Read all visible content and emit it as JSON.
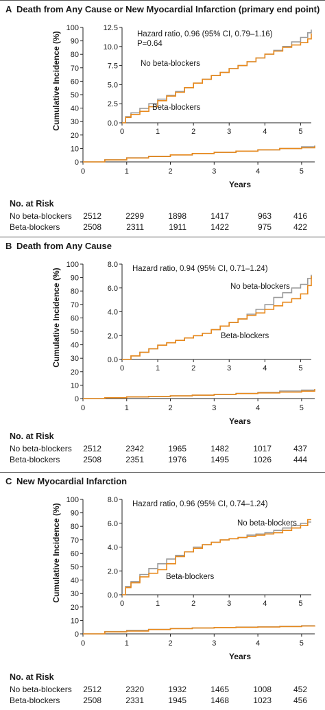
{
  "colors": {
    "no_beta": "#9a9a9a",
    "beta": "#e8891c",
    "frame": "#555555"
  },
  "panels": [
    {
      "letter": "A",
      "title": "Death from Any Cause or New Myocardial Infarction (primary end point)",
      "risk_title": "No. at Risk",
      "risk_rows": [
        {
          "label": "No beta-blockers",
          "values": [
            "2512",
            "2299",
            "1898",
            "1417",
            "963",
            "416"
          ]
        },
        {
          "label": "Beta-blockers",
          "values": [
            "2508",
            "2311",
            "1911",
            "1422",
            "975",
            "422"
          ]
        }
      ]
    },
    {
      "letter": "B",
      "title": "Death from Any Cause",
      "risk_title": "No. at Risk",
      "risk_rows": [
        {
          "label": "No beta-blockers",
          "values": [
            "2512",
            "2342",
            "1965",
            "1482",
            "1017",
            "437"
          ]
        },
        {
          "label": "Beta-blockers",
          "values": [
            "2508",
            "2351",
            "1976",
            "1495",
            "1026",
            "444"
          ]
        }
      ]
    },
    {
      "letter": "C",
      "title": "New Myocardial Infarction",
      "risk_title": "No. at Risk",
      "risk_rows": [
        {
          "label": "No beta-blockers",
          "values": [
            "2512",
            "2320",
            "1932",
            "1465",
            "1008",
            "452"
          ]
        },
        {
          "label": "Beta-blockers",
          "values": [
            "2508",
            "2331",
            "1945",
            "1468",
            "1023",
            "456"
          ]
        }
      ]
    }
  ],
  "chart_data": [
    {
      "type": "line",
      "title": "Death from Any Cause or New Myocardial Infarction (primary end point)",
      "xlabel": "Years",
      "ylabel": "Cumulative Incidence (%)",
      "xlim": [
        0,
        5.3
      ],
      "ylim": [
        0,
        100
      ],
      "xticks": [
        "0",
        "1",
        "2",
        "3",
        "4",
        "5"
      ],
      "yticks": [
        "0",
        "10",
        "20",
        "30",
        "40",
        "50",
        "60",
        "70",
        "80",
        "90",
        "100"
      ],
      "series": [
        {
          "name": "No beta-blockers",
          "color": "#9a9a9a",
          "x": [
            0,
            0.5,
            1,
            1.5,
            2,
            2.5,
            3,
            3.5,
            4,
            4.5,
            5,
            5.3
          ],
          "y": [
            0,
            1.6,
            3.0,
            4.2,
            5.2,
            6.2,
            7.1,
            8.0,
            9.0,
            10.0,
            11.2,
            12.2
          ]
        },
        {
          "name": "Beta-blockers",
          "color": "#e8891c",
          "x": [
            0,
            0.5,
            1,
            1.5,
            2,
            2.5,
            3,
            3.5,
            4,
            4.5,
            5,
            5.3
          ],
          "y": [
            0,
            1.5,
            2.9,
            4.0,
            5.2,
            6.2,
            7.1,
            8.0,
            9.0,
            9.9,
            10.5,
            11.7
          ]
        }
      ],
      "inset": {
        "xlim": [
          0,
          5.3
        ],
        "ylim": [
          0,
          12.5
        ],
        "xticks": [
          "0",
          "1",
          "2",
          "3",
          "4",
          "5"
        ],
        "yticks": [
          "0.0",
          "2.5",
          "5.0",
          "7.5",
          "10.0",
          "12.5"
        ],
        "annotations": [
          "Hazard ratio, 0.96 (95% CI, 0.79–1.16)",
          "P=0.64",
          "No beta-blockers",
          "Beta-blockers"
        ],
        "series": [
          {
            "name": "No beta-blockers",
            "color": "#9a9a9a",
            "x": [
              0,
              0.1,
              0.25,
              0.5,
              0.75,
              1.0,
              1.25,
              1.5,
              1.75,
              2.0,
              2.25,
              2.5,
              2.75,
              3.0,
              3.25,
              3.5,
              3.75,
              4.0,
              4.25,
              4.5,
              4.75,
              5.0,
              5.2,
              5.3
            ],
            "y": [
              0,
              0.8,
              1.3,
              1.9,
              2.5,
              3.1,
              3.6,
              4.1,
              4.6,
              5.2,
              5.7,
              6.2,
              6.6,
              7.1,
              7.5,
              8.0,
              8.5,
              9.0,
              9.5,
              10.0,
              10.6,
              11.2,
              11.8,
              12.2
            ]
          },
          {
            "name": "Beta-blockers",
            "color": "#e8891c",
            "x": [
              0,
              0.1,
              0.25,
              0.5,
              0.75,
              1.0,
              1.25,
              1.5,
              1.75,
              2.0,
              2.25,
              2.5,
              2.75,
              3.0,
              3.25,
              3.5,
              3.75,
              4.0,
              4.25,
              4.5,
              4.75,
              5.0,
              5.2,
              5.3
            ],
            "y": [
              0,
              0.7,
              1.1,
              1.5,
              2.1,
              2.9,
              3.5,
              4.0,
              4.6,
              5.2,
              5.7,
              6.2,
              6.6,
              7.1,
              7.5,
              8.0,
              8.5,
              9.0,
              9.4,
              9.9,
              10.2,
              10.5,
              11.0,
              11.7
            ]
          }
        ]
      }
    },
    {
      "type": "line",
      "title": "Death from Any Cause",
      "xlabel": "Years",
      "ylabel": "Cumulative Incidence (%)",
      "xlim": [
        0,
        5.3
      ],
      "ylim": [
        0,
        100
      ],
      "xticks": [
        "0",
        "1",
        "2",
        "3",
        "4",
        "5"
      ],
      "yticks": [
        "0",
        "10",
        "20",
        "30",
        "40",
        "50",
        "60",
        "70",
        "80",
        "90",
        "100"
      ],
      "series": [
        {
          "name": "No beta-blockers",
          "color": "#9a9a9a",
          "x": [
            0,
            0.5,
            1,
            1.5,
            2,
            2.5,
            3,
            3.5,
            4,
            4.5,
            5,
            5.3
          ],
          "y": [
            0,
            0.6,
            1.2,
            1.6,
            2.0,
            2.5,
            3.1,
            3.8,
            4.6,
            5.6,
            6.3,
            7.1
          ]
        },
        {
          "name": "Beta-blockers",
          "color": "#e8891c",
          "x": [
            0,
            0.5,
            1,
            1.5,
            2,
            2.5,
            3,
            3.5,
            4,
            4.5,
            5,
            5.3
          ],
          "y": [
            0,
            0.6,
            1.2,
            1.6,
            2.0,
            2.5,
            3.1,
            3.7,
            4.2,
            4.8,
            5.5,
            7.0
          ]
        }
      ],
      "inset": {
        "xlim": [
          0,
          5.3
        ],
        "ylim": [
          0,
          8.0
        ],
        "xticks": [
          "0",
          "1",
          "2",
          "3",
          "4",
          "5"
        ],
        "yticks": [
          "0.0",
          "2.0",
          "4.0",
          "6.0",
          "8.0"
        ],
        "annotations": [
          "Hazard ratio, 0.94 (95% CI, 0.71–1.24)",
          "No beta-blockers",
          "Beta-blockers"
        ],
        "series": [
          {
            "name": "No beta-blockers",
            "color": "#9a9a9a",
            "x": [
              0,
              0.25,
              0.5,
              0.75,
              1.0,
              1.25,
              1.5,
              1.75,
              2.0,
              2.25,
              2.5,
              2.75,
              3.0,
              3.25,
              3.5,
              3.75,
              4.0,
              4.25,
              4.5,
              4.75,
              5.0,
              5.2,
              5.3
            ],
            "y": [
              0,
              0.3,
              0.6,
              0.9,
              1.2,
              1.4,
              1.6,
              1.8,
              2.0,
              2.2,
              2.5,
              2.8,
              3.1,
              3.4,
              3.8,
              4.2,
              4.6,
              5.2,
              5.6,
              6.0,
              6.3,
              6.8,
              7.1
            ]
          },
          {
            "name": "Beta-blockers",
            "color": "#e8891c",
            "x": [
              0,
              0.25,
              0.5,
              0.75,
              1.0,
              1.25,
              1.5,
              1.75,
              2.0,
              2.25,
              2.5,
              2.75,
              3.0,
              3.25,
              3.5,
              3.75,
              4.0,
              4.25,
              4.5,
              4.75,
              5.0,
              5.2,
              5.3
            ],
            "y": [
              0,
              0.3,
              0.6,
              0.9,
              1.2,
              1.4,
              1.6,
              1.8,
              2.0,
              2.2,
              2.5,
              2.8,
              3.1,
              3.4,
              3.7,
              3.9,
              4.2,
              4.5,
              4.8,
              5.1,
              5.5,
              6.2,
              7.0
            ]
          }
        ]
      }
    },
    {
      "type": "line",
      "title": "New Myocardial Infarction",
      "xlabel": "Years",
      "ylabel": "Cumulative Incidence (%)",
      "xlim": [
        0,
        5.3
      ],
      "ylim": [
        0,
        100
      ],
      "xticks": [
        "0",
        "1",
        "2",
        "3",
        "4",
        "5"
      ],
      "yticks": [
        "0",
        "10",
        "20",
        "30",
        "40",
        "50",
        "60",
        "70",
        "80",
        "90",
        "100"
      ],
      "series": [
        {
          "name": "No beta-blockers",
          "color": "#9a9a9a",
          "x": [
            0,
            0.5,
            1,
            1.5,
            2,
            2.5,
            3,
            3.5,
            4,
            4.5,
            5,
            5.3
          ],
          "y": [
            0,
            1.7,
            2.6,
            3.3,
            4.0,
            4.4,
            4.7,
            5.0,
            5.2,
            5.6,
            6.0,
            6.1
          ]
        },
        {
          "name": "Beta-blockers",
          "color": "#e8891c",
          "x": [
            0,
            0.5,
            1,
            1.5,
            2,
            2.5,
            3,
            3.5,
            4,
            4.5,
            5,
            5.3
          ],
          "y": [
            0,
            1.5,
            2.1,
            3.2,
            3.9,
            4.4,
            4.7,
            4.9,
            5.1,
            5.4,
            5.8,
            6.3
          ]
        }
      ],
      "inset": {
        "xlim": [
          0,
          5.3
        ],
        "ylim": [
          0,
          8.0
        ],
        "xticks": [
          "0",
          "1",
          "2",
          "3",
          "4",
          "5"
        ],
        "yticks": [
          "0.0",
          "2.0",
          "4.0",
          "6.0",
          "8.0"
        ],
        "annotations": [
          "Hazard ratio, 0.96 (95% CI, 0.74–1.24)",
          "No beta-blockers",
          "Beta-blockers"
        ],
        "series": [
          {
            "name": "No beta-blockers",
            "color": "#9a9a9a",
            "x": [
              0,
              0.1,
              0.25,
              0.5,
              0.75,
              1.0,
              1.25,
              1.5,
              1.75,
              2.0,
              2.25,
              2.5,
              2.75,
              3.0,
              3.25,
              3.5,
              3.75,
              4.0,
              4.25,
              4.5,
              4.75,
              5.0,
              5.2,
              5.3
            ],
            "y": [
              0,
              0.7,
              1.1,
              1.7,
              2.2,
              2.6,
              3.0,
              3.3,
              3.6,
              4.0,
              4.2,
              4.4,
              4.6,
              4.7,
              4.8,
              5.0,
              5.1,
              5.2,
              5.4,
              5.6,
              5.8,
              6.0,
              6.1,
              6.1
            ]
          },
          {
            "name": "Beta-blockers",
            "color": "#e8891c",
            "x": [
              0,
              0.1,
              0.25,
              0.5,
              0.75,
              1.0,
              1.25,
              1.5,
              1.75,
              2.0,
              2.25,
              2.5,
              2.75,
              3.0,
              3.25,
              3.5,
              3.75,
              4.0,
              4.25,
              4.5,
              4.75,
              5.0,
              5.2,
              5.3
            ],
            "y": [
              0,
              0.6,
              1.0,
              1.5,
              1.8,
              2.1,
              2.6,
              3.2,
              3.6,
              3.9,
              4.2,
              4.4,
              4.6,
              4.7,
              4.8,
              4.9,
              5.0,
              5.1,
              5.2,
              5.4,
              5.6,
              5.8,
              6.3,
              6.3
            ]
          }
        ]
      }
    }
  ]
}
